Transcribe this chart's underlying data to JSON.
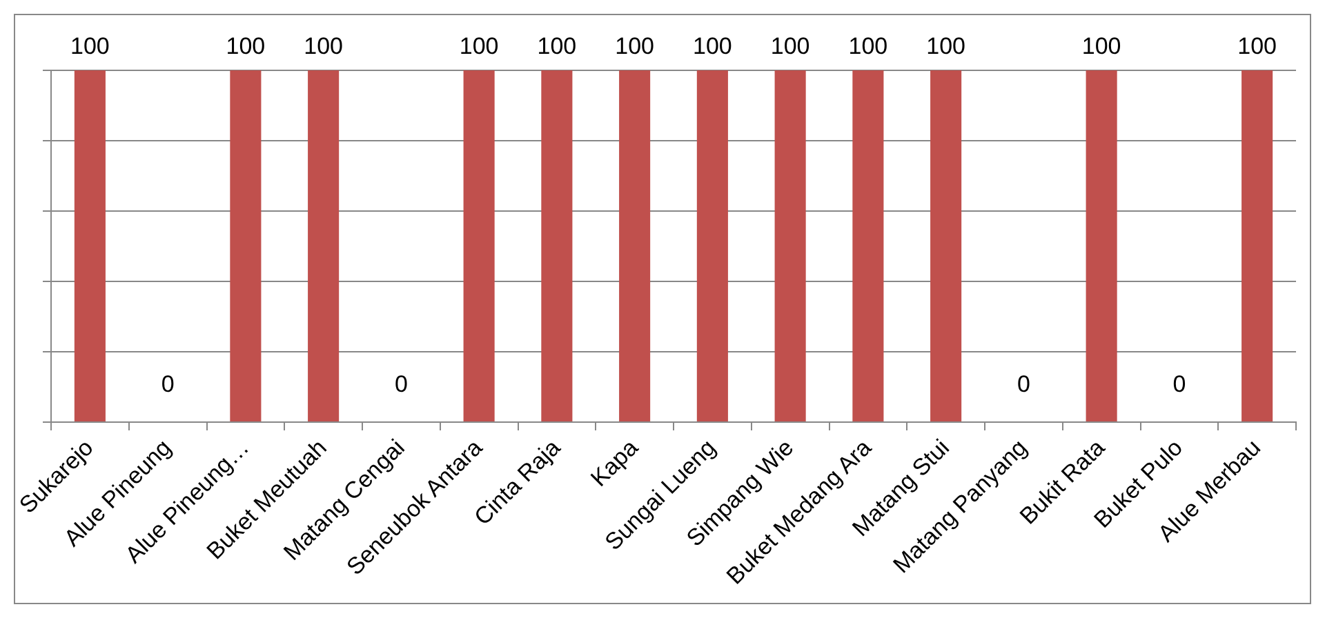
{
  "chart_data": {
    "type": "bar",
    "categories": [
      "Sukarejo",
      "Alue Pineung",
      "Alue Pineung…",
      "Buket Meutuah",
      "Matang Cengai",
      "Seneubok Antara",
      "Cinta Raja",
      "Kapa",
      "Sungai Lueng",
      "Simpang Wie",
      "Buket Medang Ara",
      "Matang Stui",
      "Matang Panyang",
      "Bukit Rata",
      "Buket Pulo",
      "Alue Merbau"
    ],
    "values": [
      100,
      0,
      100,
      100,
      0,
      100,
      100,
      100,
      100,
      100,
      100,
      100,
      0,
      100,
      0,
      100
    ],
    "color": "#c0504d",
    "ylim": [
      0,
      100
    ],
    "yticks": [
      {
        "value": 0,
        "label": null
      },
      {
        "value": 20,
        "label": null
      },
      {
        "value": 40,
        "label": null
      },
      {
        "value": 60,
        "label": null
      },
      {
        "value": 80,
        "label": null
      },
      {
        "value": 100,
        "label": null
      }
    ],
    "grid": "y",
    "tick_labels": "x",
    "data_labels": true
  }
}
